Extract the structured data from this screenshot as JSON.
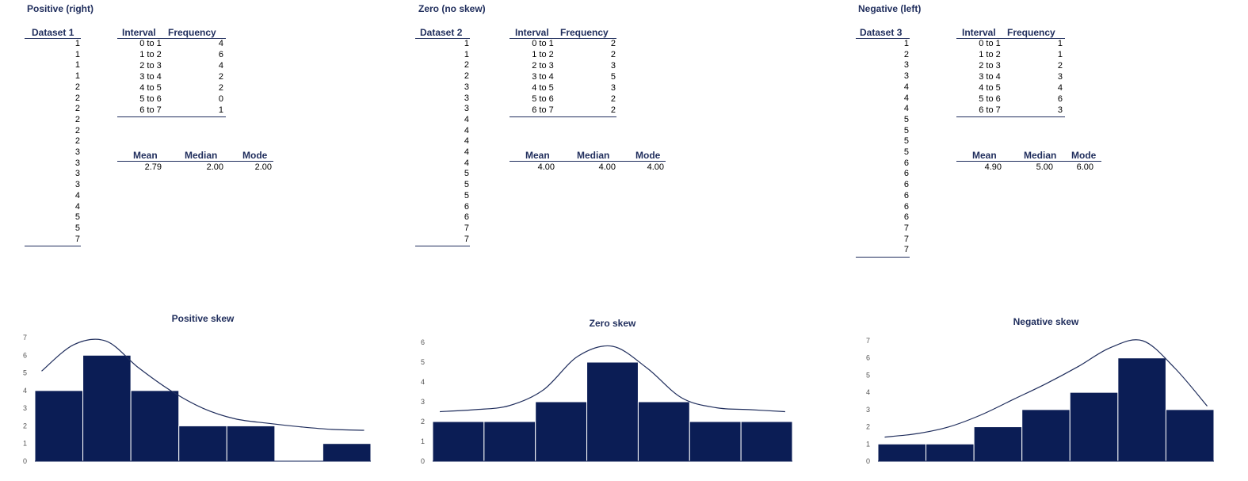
{
  "panels": [
    {
      "title": "Positive (right)",
      "dataset_header": "Dataset 1",
      "dataset": [
        1,
        1,
        1,
        1,
        2,
        2,
        2,
        2,
        2,
        2,
        3,
        3,
        3,
        3,
        4,
        4,
        5,
        5,
        7
      ],
      "freq_headers": {
        "interval": "Interval",
        "frequency": "Frequency"
      },
      "intervals": [
        "0 to 1",
        "1 to 2",
        "2 to 3",
        "3 to 4",
        "4 to 5",
        "5 to 6",
        "6 to 7"
      ],
      "frequencies": [
        "4",
        "6",
        "4",
        "2",
        "2",
        "0",
        "1"
      ],
      "stats_headers": {
        "mean": "Mean",
        "median": "Median",
        "mode": "Mode"
      },
      "stats": {
        "mean": "2.79",
        "median": "2.00",
        "mode": "2.00"
      }
    },
    {
      "title": "Zero (no skew)",
      "dataset_header": "Dataset 2",
      "dataset": [
        1,
        1,
        2,
        2,
        3,
        3,
        3,
        4,
        4,
        4,
        4,
        4,
        5,
        5,
        5,
        6,
        6,
        7,
        7
      ],
      "freq_headers": {
        "interval": "Interval",
        "frequency": "Frequency"
      },
      "intervals": [
        "0 to 1",
        "1 to 2",
        "2 to 3",
        "3 to 4",
        "4 to 5",
        "5 to 6",
        "6 to 7"
      ],
      "frequencies": [
        "2",
        "2",
        "3",
        "5",
        "3",
        "2",
        "2"
      ],
      "stats_headers": {
        "mean": "Mean",
        "median": "Median",
        "mode": "Mode"
      },
      "stats": {
        "mean": "4.00",
        "median": "4.00",
        "mode": "4.00"
      }
    },
    {
      "title": "Negative (left)",
      "dataset_header": "Dataset 3",
      "dataset": [
        1,
        2,
        3,
        3,
        4,
        4,
        4,
        5,
        5,
        5,
        5,
        6,
        6,
        6,
        6,
        6,
        6,
        7,
        7,
        7
      ],
      "freq_headers": {
        "interval": "Interval",
        "frequency": "Frequency"
      },
      "intervals": [
        "0 to 1",
        "1 to 2",
        "2 to 3",
        "3 to 4",
        "4 to 5",
        "5 to 6",
        "6 to 7"
      ],
      "frequencies": [
        "1",
        "1",
        "2",
        "3",
        "4",
        "6",
        "3"
      ],
      "stats_headers": {
        "mean": "Mean",
        "median": "Median",
        "mode": "Mode"
      },
      "stats": {
        "mean": "4.90",
        "median": "5.00",
        "mode": "6.00"
      }
    }
  ],
  "colors": {
    "bar": "#0b1d55",
    "header": "#1f2d5c",
    "axis": "#888888"
  },
  "chart_data": [
    {
      "type": "bar",
      "title": "Positive skew",
      "categories": [
        "0 to 1",
        "1 to 2",
        "2 to 3",
        "3 to 4",
        "4 to 5",
        "5 to 6",
        "6 to 7"
      ],
      "values": [
        4,
        6,
        4,
        2,
        2,
        0,
        1
      ],
      "curve": [
        5.1,
        6.6,
        6.8,
        5.3,
        4.0,
        3.0,
        2.4,
        2.15,
        1.95,
        1.8,
        1.75
      ],
      "ylim": [
        0,
        7
      ],
      "yticks": [
        "0",
        "1",
        "2",
        "3",
        "4",
        "5",
        "6",
        "7"
      ],
      "xlabel": "",
      "ylabel": ""
    },
    {
      "type": "bar",
      "title": "Zero skew",
      "categories": [
        "0 to 1",
        "1 to 2",
        "2 to 3",
        "3 to 4",
        "4 to 5",
        "5 to 6",
        "6 to 7"
      ],
      "values": [
        2,
        2,
        3,
        5,
        3,
        2,
        2
      ],
      "curve": [
        2.5,
        2.6,
        2.8,
        3.6,
        5.3,
        5.8,
        4.7,
        3.2,
        2.7,
        2.6,
        2.5
      ],
      "ylim": [
        0,
        6
      ],
      "yticks": [
        "0",
        "1",
        "2",
        "3",
        "4",
        "5",
        "6"
      ],
      "xlabel": "",
      "ylabel": ""
    },
    {
      "type": "bar",
      "title": "Negative skew",
      "categories": [
        "0 to 1",
        "1 to 2",
        "2 to 3",
        "3 to 4",
        "4 to 5",
        "5 to 6",
        "6 to 7"
      ],
      "values": [
        1,
        1,
        2,
        3,
        4,
        6,
        3
      ],
      "curve": [
        1.4,
        1.6,
        2.0,
        2.7,
        3.6,
        4.5,
        5.5,
        6.6,
        7.0,
        5.4,
        3.2
      ],
      "ylim": [
        0,
        7
      ],
      "yticks": [
        "0",
        "1",
        "2",
        "3",
        "4",
        "5",
        "6",
        "7"
      ],
      "xlabel": "",
      "ylabel": ""
    }
  ]
}
